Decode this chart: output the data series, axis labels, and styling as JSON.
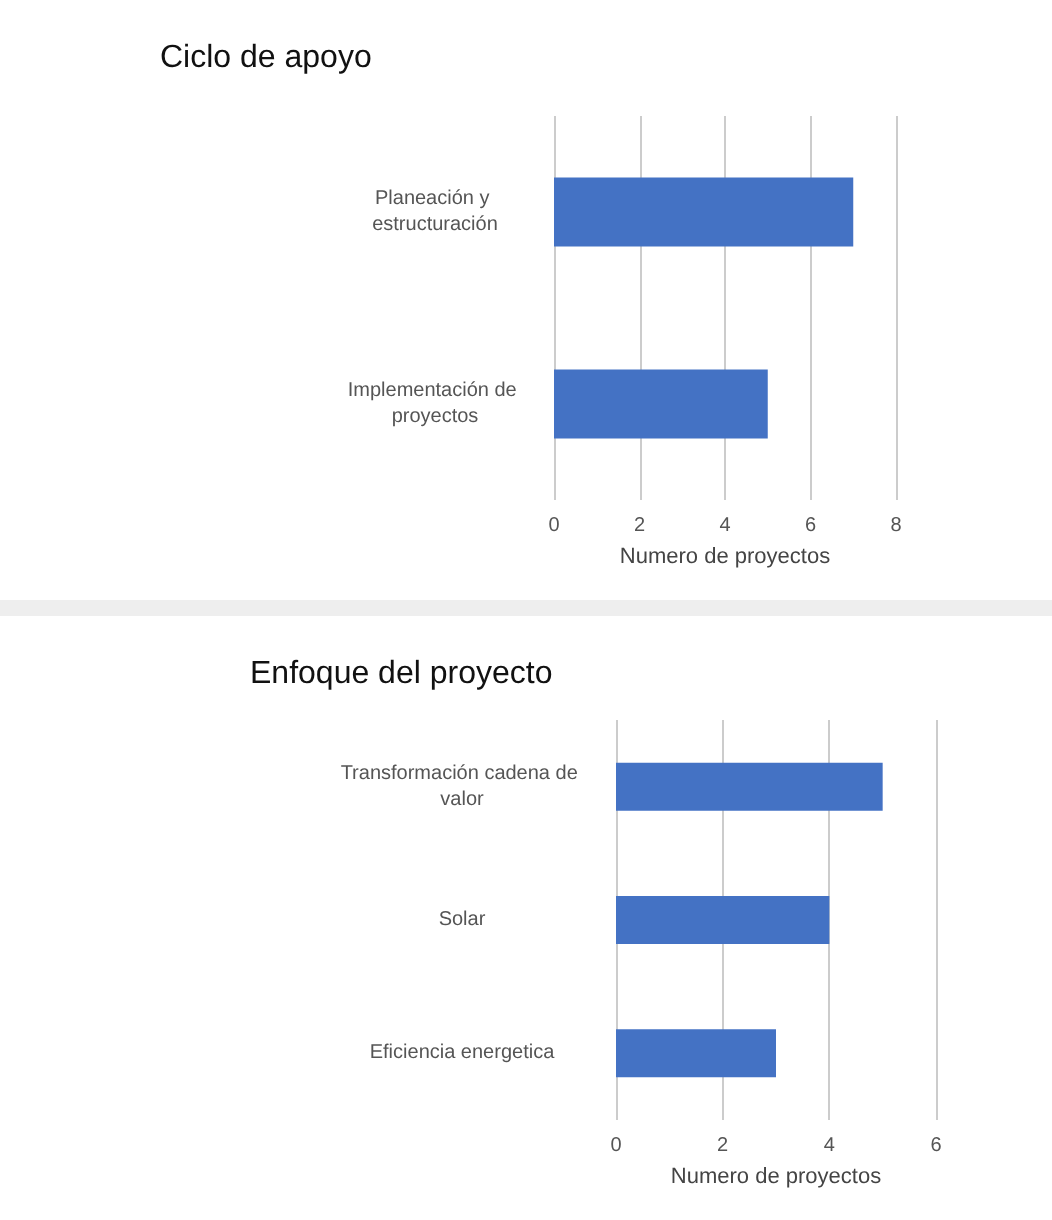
{
  "chart_data": [
    {
      "type": "bar",
      "orientation": "horizontal",
      "title": "Ciclo de apoyo",
      "xlabel": "Numero de proyectos",
      "categories": [
        "Planeación y estructuración",
        "Implementación de proyectos"
      ],
      "values": [
        7,
        5
      ],
      "color": "#4472c4",
      "xlim": [
        0,
        8
      ],
      "xticks": [
        0,
        2,
        4,
        6,
        8
      ],
      "grid": "x"
    },
    {
      "type": "bar",
      "orientation": "horizontal",
      "title": "Enfoque del proyecto",
      "xlabel": "Numero de proyectos",
      "categories": [
        "Transformación cadena de valor",
        "Solar",
        "Eficiencia energetica"
      ],
      "values": [
        5,
        4,
        3
      ],
      "color": "#4472c4",
      "xlim": [
        0,
        6
      ],
      "xticks": [
        0,
        2,
        4,
        6
      ],
      "grid": "x"
    }
  ]
}
